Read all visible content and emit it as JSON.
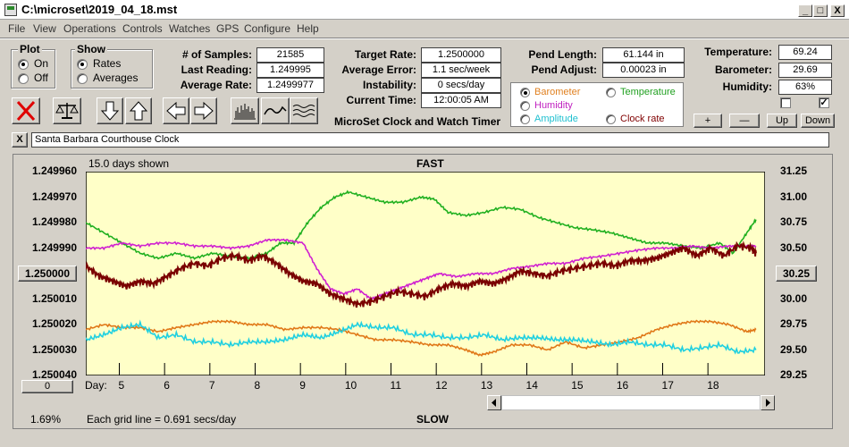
{
  "window": {
    "title": "C:\\microset\\2019_04_18.mst",
    "min_label": "_",
    "max_label": "□",
    "close_label": "X"
  },
  "menu": [
    "File",
    "View",
    "Operations",
    "Controls",
    "Watches",
    "GPS",
    "Configure",
    "Help"
  ],
  "plot_group": {
    "label": "Plot",
    "options": [
      "On",
      "Off"
    ],
    "selected": "On"
  },
  "show_group": {
    "label": "Show",
    "options": [
      "Rates",
      "Averages"
    ],
    "selected": "Rates"
  },
  "stats": {
    "samples_label": "# of Samples:",
    "samples": "21585",
    "last_reading_label": "Last Reading:",
    "last_reading": "1.249995",
    "average_rate_label": "Average Rate:",
    "average_rate": "1.2499977",
    "target_rate_label": "Target Rate:",
    "target_rate": "1.2500000",
    "average_error_label": "Average Error:",
    "average_error": "1.1 sec/week",
    "instability_label": "Instability:",
    "instability": "0 secs/day",
    "current_time_label": "Current Time:",
    "current_time": "12:00:05 AM",
    "pend_length_label": "Pend Length:",
    "pend_length": "61.144 in",
    "pend_adjust_label": "Pend Adjust:",
    "pend_adjust": "0.00023 in"
  },
  "environment": {
    "temperature_label": "Temperature:",
    "temperature": "69.24",
    "barometer_label": "Barometer:",
    "barometer": "29.69",
    "humidity_label": "Humidity:",
    "humidity": "63%",
    "check1": false,
    "check2": true,
    "check2_mark": "✓"
  },
  "app_heading": "MicroSet Clock and Watch Timer",
  "sources": {
    "items": [
      {
        "label": "Barometer",
        "color": "#e08020",
        "selected": true
      },
      {
        "label": "Temperature",
        "color": "#20a020",
        "selected": false
      },
      {
        "label": "Humidity",
        "color": "#c020c0",
        "selected": false
      },
      {
        "label": "Amplitude",
        "color": "#20c0d0",
        "selected": false
      },
      {
        "label": "Clock rate",
        "color": "#800000",
        "selected": false
      }
    ]
  },
  "scale_buttons": {
    "plus": "+",
    "minus": "—",
    "up": "Up",
    "down": "Down"
  },
  "clock_name": {
    "close_label": "X",
    "value": "Santa Barbara Courthouse Clock"
  },
  "icons": [
    "close-x-icon",
    "balance-scale-icon",
    "arrow-down-icon",
    "arrow-up-icon",
    "arrow-left-icon",
    "arrow-right-icon",
    "bar-graph-icon",
    "wave-icon",
    "multi-wave-icon"
  ],
  "chart_header": {
    "days_shown": "15.0 days shown",
    "top": "FAST",
    "bottom": "SLOW",
    "grid_note": "Each grid line = 0.691 secs/day",
    "percent": "1.69%",
    "left_button": "0",
    "day_label": "Day:",
    "center_button": "1.250000",
    "right_button": "30.25"
  },
  "chart_data": {
    "type": "line",
    "x_label": "Day:",
    "x_ticks": [
      5,
      6,
      7,
      8,
      9,
      10,
      11,
      12,
      13,
      14,
      15,
      16,
      17,
      18
    ],
    "xlim": [
      4.2,
      19.2
    ],
    "left_axis": {
      "ticks": [
        "1.249960",
        "1.249970",
        "1.249980",
        "1.249990",
        "1.250000",
        "1.250010",
        "1.250020",
        "1.250030",
        "1.250040"
      ],
      "ylim": [
        1.24996,
        1.25004
      ]
    },
    "right_axis": {
      "ticks": [
        "31.25",
        "31.00",
        "30.75",
        "30.50",
        "30.25",
        "30.00",
        "29.75",
        "29.50",
        "29.25"
      ],
      "ylim": [
        29.25,
        31.25
      ]
    },
    "series": [
      {
        "name": "Temperature",
        "color": "#20b020",
        "axis": "right",
        "x": [
          4.2,
          4.6,
          5.0,
          5.4,
          5.8,
          6.2,
          6.6,
          7.0,
          7.4,
          7.8,
          8.2,
          8.5,
          8.8,
          9.1,
          9.4,
          9.7,
          10.0,
          10.4,
          10.8,
          11.2,
          11.6,
          11.9,
          12.2,
          12.6,
          13.0,
          13.4,
          13.8,
          14.2,
          14.6,
          15.0,
          15.4,
          15.8,
          16.2,
          16.6,
          17.0,
          17.4,
          17.8,
          18.2,
          18.5,
          18.8,
          19.0
        ],
        "y": [
          30.75,
          30.65,
          30.55,
          30.45,
          30.4,
          30.45,
          30.4,
          30.45,
          30.42,
          30.4,
          30.45,
          30.55,
          30.55,
          30.75,
          30.9,
          31.0,
          31.05,
          31.0,
          30.95,
          30.95,
          31.0,
          30.98,
          30.85,
          30.82,
          30.85,
          30.9,
          30.88,
          30.8,
          30.75,
          30.7,
          30.68,
          30.65,
          30.6,
          30.55,
          30.55,
          30.52,
          30.5,
          30.55,
          30.45,
          30.65,
          30.78
        ]
      },
      {
        "name": "Humidity",
        "color": "#d020d0",
        "axis": "right",
        "x": [
          4.2,
          4.6,
          5.0,
          5.4,
          5.8,
          6.2,
          6.6,
          7.0,
          7.4,
          7.8,
          8.2,
          8.6,
          9.0,
          9.3,
          9.6,
          9.9,
          10.2,
          10.5,
          10.8,
          11.1,
          11.4,
          11.7,
          12.0,
          12.4,
          12.8,
          13.2,
          13.6,
          14.0,
          14.4,
          14.8,
          15.2,
          15.6,
          16.0,
          16.4,
          16.8,
          17.2,
          17.6,
          18.0,
          18.4,
          18.8,
          19.0
        ],
        "y": [
          30.5,
          30.5,
          30.55,
          30.52,
          30.55,
          30.55,
          30.52,
          30.52,
          30.5,
          30.52,
          30.58,
          30.58,
          30.55,
          30.3,
          30.1,
          30.05,
          30.1,
          30.0,
          30.05,
          30.1,
          30.15,
          30.2,
          30.25,
          30.22,
          30.25,
          30.25,
          30.3,
          30.32,
          30.35,
          30.35,
          30.4,
          30.42,
          30.45,
          30.48,
          30.5,
          30.5,
          30.52,
          30.5,
          30.52,
          30.52,
          30.52
        ]
      },
      {
        "name": "Clock rate",
        "color": "#7a0000",
        "axis": "left",
        "x": [
          4.2,
          4.5,
          4.8,
          5.1,
          5.4,
          5.7,
          6.0,
          6.3,
          6.6,
          6.9,
          7.2,
          7.5,
          7.8,
          8.1,
          8.4,
          8.7,
          9.0,
          9.3,
          9.6,
          9.9,
          10.2,
          10.5,
          10.8,
          11.1,
          11.4,
          11.7,
          12.0,
          12.3,
          12.6,
          12.9,
          13.2,
          13.5,
          13.8,
          14.1,
          14.4,
          14.7,
          15.0,
          15.3,
          15.6,
          15.9,
          16.2,
          16.5,
          16.8,
          17.1,
          17.4,
          17.7,
          18.0,
          18.3,
          18.6,
          18.9,
          19.0
        ],
        "y": [
          1.249997,
          1.250001,
          1.250003,
          1.250005,
          1.250003,
          1.250004,
          1.250001,
          1.249998,
          1.249996,
          1.249997,
          1.249994,
          1.249993,
          1.249995,
          1.249993,
          1.249996,
          1.25,
          1.250003,
          1.250004,
          1.250008,
          1.25001,
          1.250012,
          1.250011,
          1.250009,
          1.250007,
          1.250008,
          1.250009,
          1.250006,
          1.250004,
          1.250005,
          1.250003,
          1.250004,
          1.250002,
          1.249999,
          1.25,
          1.250001,
          1.249999,
          1.249998,
          1.249997,
          1.249996,
          1.249997,
          1.249995,
          1.249995,
          1.249994,
          1.249992,
          1.24999,
          1.249993,
          1.24999,
          1.249993,
          1.249989,
          1.24999,
          1.249992
        ]
      },
      {
        "name": "Barometer",
        "color": "#e07818",
        "axis": "right",
        "x": [
          4.2,
          4.6,
          5.0,
          5.4,
          5.8,
          6.2,
          6.6,
          7.0,
          7.4,
          7.8,
          8.2,
          8.6,
          9.0,
          9.4,
          9.8,
          10.2,
          10.6,
          11.0,
          11.4,
          11.8,
          12.2,
          12.6,
          12.9,
          13.2,
          13.6,
          14.0,
          14.4,
          14.8,
          15.2,
          15.6,
          16.0,
          16.4,
          16.8,
          17.2,
          17.6,
          18.0,
          18.4,
          18.8,
          19.0
        ],
        "y": [
          29.7,
          29.75,
          29.72,
          29.72,
          29.68,
          29.72,
          29.75,
          29.78,
          29.78,
          29.75,
          29.75,
          29.7,
          29.72,
          29.72,
          29.7,
          29.65,
          29.6,
          29.6,
          29.58,
          29.55,
          29.55,
          29.5,
          29.45,
          29.48,
          29.55,
          29.55,
          29.5,
          29.58,
          29.52,
          29.55,
          29.58,
          29.62,
          29.7,
          29.75,
          29.78,
          29.78,
          29.75,
          29.68,
          29.7
        ]
      },
      {
        "name": "Amplitude",
        "color": "#20d0e0",
        "axis": "right",
        "x": [
          4.2,
          4.6,
          5.0,
          5.4,
          5.8,
          6.2,
          6.6,
          7.0,
          7.4,
          7.8,
          8.2,
          8.6,
          9.0,
          9.4,
          9.8,
          10.2,
          10.6,
          11.0,
          11.4,
          11.8,
          12.2,
          12.6,
          13.0,
          13.4,
          13.8,
          14.2,
          14.6,
          15.0,
          15.4,
          15.8,
          16.2,
          16.6,
          17.0,
          17.4,
          17.8,
          18.2,
          18.6,
          19.0
        ],
        "y": [
          29.6,
          29.65,
          29.72,
          29.75,
          29.62,
          29.65,
          29.58,
          29.58,
          29.55,
          29.58,
          29.58,
          29.6,
          29.65,
          29.62,
          29.68,
          29.75,
          29.72,
          29.72,
          29.65,
          29.65,
          29.62,
          29.62,
          29.65,
          29.6,
          29.62,
          29.62,
          29.6,
          29.6,
          29.58,
          29.55,
          29.58,
          29.55,
          29.55,
          29.5,
          29.52,
          29.55,
          29.48,
          29.5
        ]
      }
    ]
  }
}
